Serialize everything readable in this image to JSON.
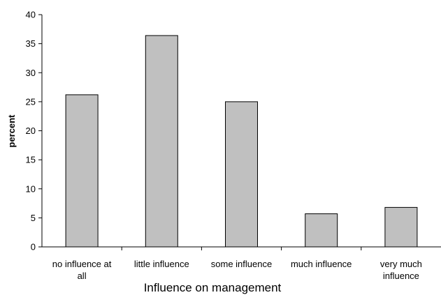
{
  "chart_data": {
    "type": "bar",
    "categories": [
      [
        "no influence at",
        "all"
      ],
      [
        "little influence"
      ],
      [
        "some influence"
      ],
      [
        "much influence"
      ],
      [
        "very much",
        "influence"
      ]
    ],
    "values": [
      26.2,
      36.4,
      25.0,
      5.7,
      6.8
    ],
    "yticks": [
      "0",
      "5",
      "10",
      "15",
      "20",
      "25",
      "30",
      "35",
      "40"
    ],
    "ylim": [
      0,
      40
    ],
    "xlabel": "Influence on management",
    "ylabel": "percent",
    "grid": false,
    "legend": "none",
    "bar_color": "#c0c0c0",
    "bar_edge_color": "#000000"
  }
}
